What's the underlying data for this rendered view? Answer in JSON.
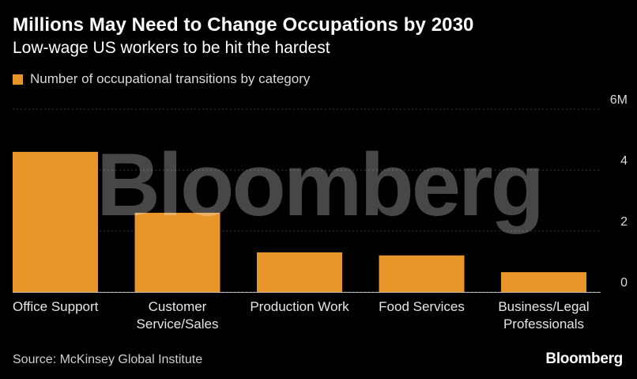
{
  "header": {
    "title": "Millions May Need to Change Occupations by 2030",
    "subtitle": "Low-wage US workers to be hit the hardest"
  },
  "legend": {
    "label": "Number of occupational transitions by category"
  },
  "footer": {
    "source": "Source: McKinsey Global Institute",
    "logo": "Bloomberg"
  },
  "watermark": "Bloomberg",
  "colors": {
    "bar": "#E8952A",
    "background": "#000000",
    "gridline": "#3a3a3a",
    "tick_text": "#d9d9d9"
  },
  "chart_data": {
    "type": "bar",
    "categories": [
      "Office Support",
      "Customer Service/Sales",
      "Production Work",
      "Food Services",
      "Business/Legal Professionals"
    ],
    "category_lines": [
      [
        "Office Support"
      ],
      [
        "Customer",
        "Service/Sales"
      ],
      [
        "Production Work"
      ],
      [
        "Food Services"
      ],
      [
        "Business/Legal",
        "Professionals"
      ]
    ],
    "values": [
      4.6,
      2.6,
      1.3,
      1.2,
      0.65
    ],
    "ylim": [
      0,
      6
    ],
    "yticks": [
      0,
      2,
      4,
      6
    ],
    "ytick_labels": [
      "0",
      "2",
      "4",
      "6M"
    ],
    "grid": true,
    "legend_position": "top-left"
  }
}
